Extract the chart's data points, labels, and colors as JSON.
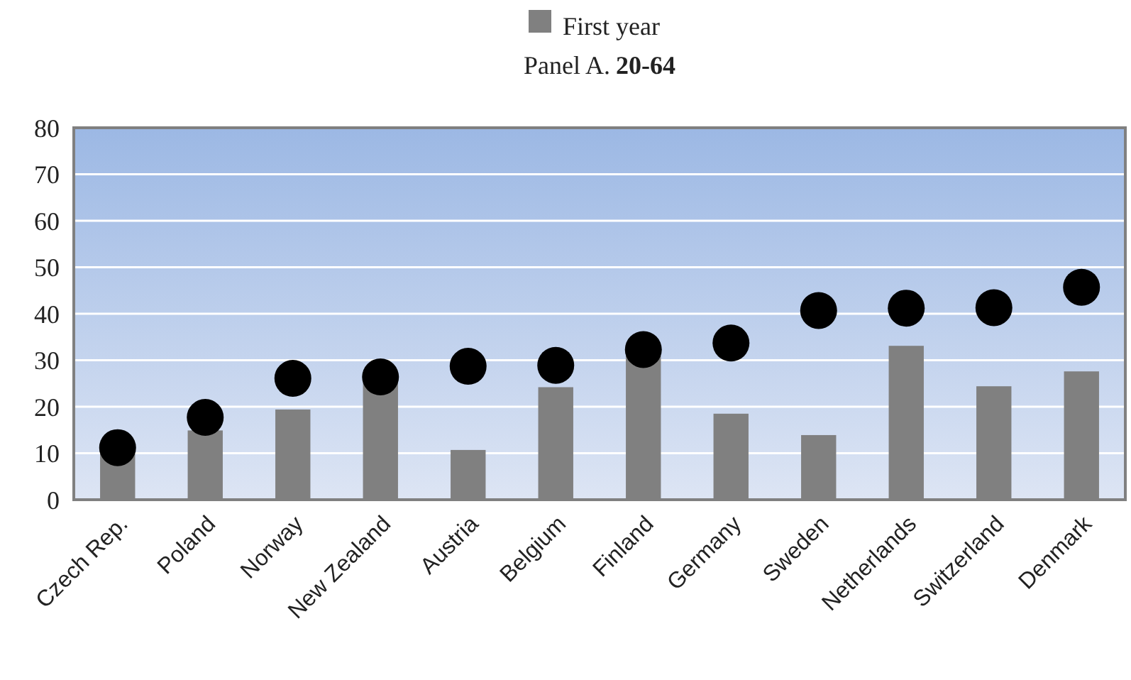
{
  "chart_data": {
    "type": "bar",
    "title": "Panel A.",
    "subtitle": "20-64",
    "categories": [
      "Czech Rep.",
      "Poland",
      "Norway",
      "New Zealand",
      "Austria",
      "Belgium",
      "Finland",
      "Germany",
      "Sweden",
      "Netherlands",
      "Switzerland",
      "Denmark"
    ],
    "series": [
      {
        "name": "First year",
        "color": "#808080",
        "values": [
          10,
          14.9,
          19.4,
          25.5,
          10.7,
          24.2,
          31,
          18.5,
          13.9,
          33.1,
          24.4,
          27.6
        ]
      },
      {
        "type": "scatter",
        "color": "#000000",
        "values": [
          11.2,
          17.7,
          26.1,
          26.4,
          28.7,
          28.9,
          32.3,
          33.7,
          40.7,
          41.2,
          41.3,
          45.7
        ]
      }
    ],
    "ylim": [
      0,
      80
    ],
    "yticks": [
      0,
      10,
      20,
      30,
      40,
      50,
      60,
      70,
      80
    ],
    "grid": "y",
    "legend": "top",
    "marker": "circle"
  }
}
